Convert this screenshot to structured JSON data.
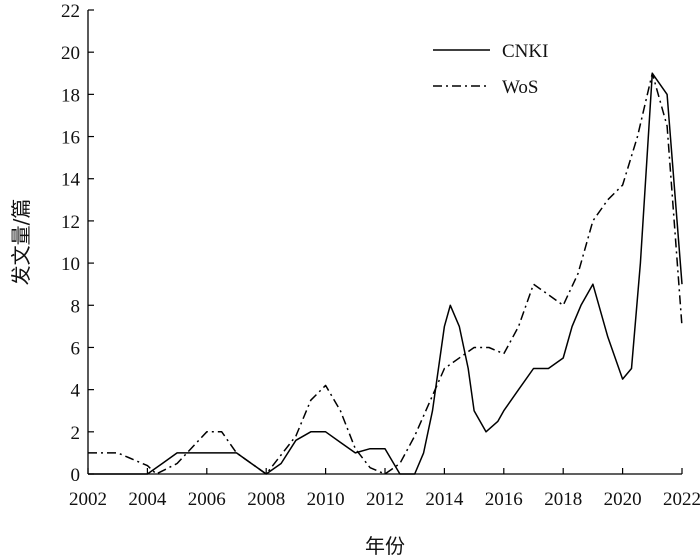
{
  "chart_data": {
    "type": "line",
    "title": "",
    "xlabel": "年份",
    "ylabel": "发文量/篇",
    "xlim": [
      2002,
      2022
    ],
    "ylim": [
      0,
      22
    ],
    "xticks": [
      2002,
      2004,
      2006,
      2008,
      2010,
      2012,
      2014,
      2016,
      2018,
      2020,
      2022
    ],
    "yticks": [
      0,
      2,
      4,
      6,
      8,
      10,
      12,
      14,
      16,
      18,
      20,
      22
    ],
    "grid": false,
    "legend_position": "top-right",
    "series": [
      {
        "name": "CNKI",
        "style": "solid",
        "color": "#000000",
        "x": [
          2002,
          2003,
          2003.5,
          2004,
          2004.5,
          2005,
          2005.5,
          2006,
          2006.5,
          2007,
          2007.5,
          2008,
          2008.5,
          2009,
          2009.5,
          2010,
          2010.5,
          2011,
          2011.5,
          2012,
          2012.5,
          2013,
          2013.3,
          2013.6,
          2014,
          2014.2,
          2014.5,
          2014.8,
          2015,
          2015.4,
          2015.8,
          2016,
          2016.5,
          2017,
          2017.5,
          2018,
          2018.3,
          2018.6,
          2019,
          2019.5,
          2020,
          2020.3,
          2020.6,
          2021,
          2021.5,
          2022
        ],
        "values": [
          0,
          0,
          0,
          0,
          0.5,
          1,
          1,
          1,
          1,
          1,
          0.5,
          0,
          0.5,
          1.6,
          2,
          2,
          1.5,
          1,
          1.2,
          1.2,
          0,
          0,
          1,
          3,
          7,
          8,
          7,
          5,
          3,
          2,
          2.5,
          3,
          4,
          5,
          5,
          5.5,
          7,
          8,
          9,
          6.5,
          4.5,
          5,
          10,
          19,
          18,
          9
        ]
      },
      {
        "name": "WoS",
        "style": "dash-dot",
        "color": "#000000",
        "x": [
          2002,
          2003,
          2004,
          2004.3,
          2005,
          2006,
          2006.5,
          2007,
          2008,
          2009,
          2009.5,
          2010,
          2010.5,
          2011,
          2011.5,
          2012,
          2012.5,
          2013,
          2014,
          2015,
          2015.5,
          2016,
          2016.5,
          2017,
          2017.5,
          2018,
          2018.5,
          2019,
          2019.5,
          2020,
          2020.5,
          2021,
          2021.5,
          2022
        ],
        "values": [
          1,
          1,
          0.4,
          0,
          0.5,
          2,
          2,
          1,
          0,
          1.8,
          3.5,
          4.2,
          3,
          1.2,
          0.3,
          0,
          0.5,
          1.8,
          5,
          6,
          6,
          5.7,
          7,
          9,
          8.5,
          8,
          9.5,
          12,
          13,
          13.7,
          16,
          19,
          16.5,
          7
        ]
      }
    ]
  }
}
